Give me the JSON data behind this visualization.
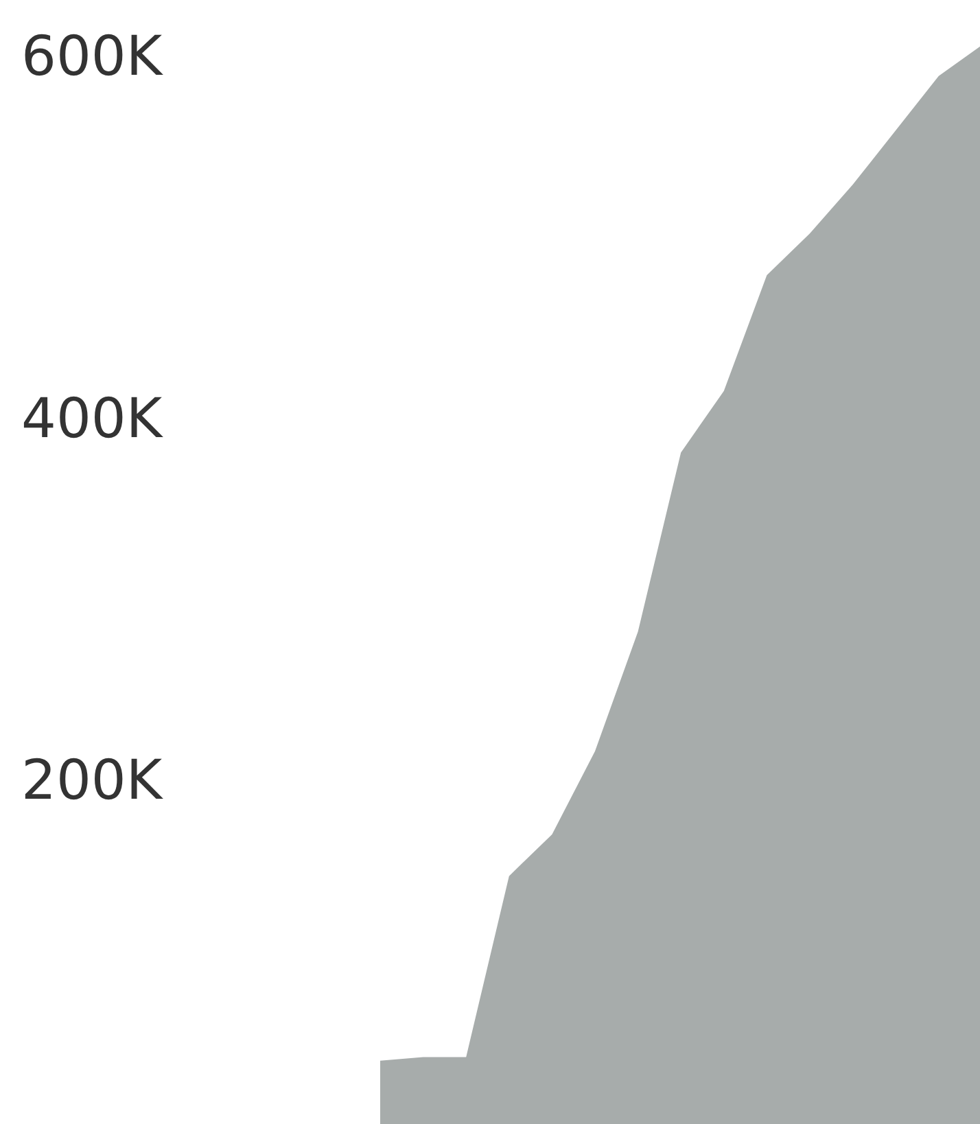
{
  "chart_data": {
    "type": "area",
    "relative": false,
    "categories": [
      null,
      null,
      null,
      null,
      null,
      null,
      null,
      null,
      null,
      null,
      null,
      null,
      null,
      null,
      null
    ],
    "series": [
      {
        "color": "#a7acab",
        "values": [
          46000,
          48000,
          48000,
          148000,
          171000,
          217000,
          283000,
          382000,
          416000,
          480000,
          503000,
          530000,
          560000,
          590000,
          607000
        ]
      }
    ],
    "ylim": [
      11000,
      632000
    ],
    "yticks": [
      {
        "value": 200000,
        "label": "200K"
      },
      {
        "value": 400000,
        "label": "400K"
      },
      {
        "value": 600000,
        "label": "600K"
      }
    ],
    "tick_labels": "y",
    "grid": false
  }
}
